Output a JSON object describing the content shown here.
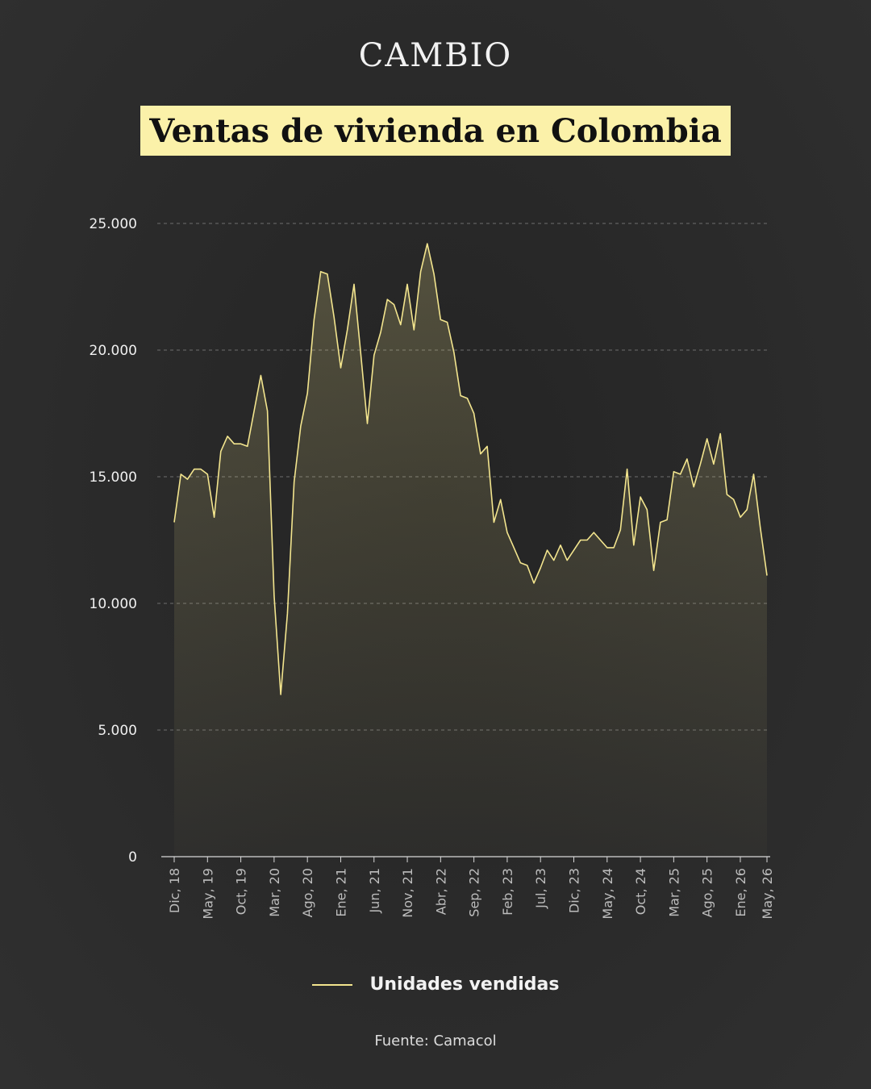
{
  "header": {
    "brand": "CAMBIO",
    "title": "Ventas de vivienda en Colombia"
  },
  "legend": {
    "label": "Unidades vendidas"
  },
  "footer": {
    "source": "Fuente: Camacol"
  },
  "colors": {
    "line": "#f3e58e",
    "fill": "#f3e58e",
    "background": "#2a2a2a",
    "grid": "#6a6a6a",
    "title_bg": "#fbf1a9"
  },
  "chart_data": {
    "type": "area",
    "title": "Ventas de vivienda en Colombia",
    "xlabel": "",
    "ylabel": "",
    "ylim": [
      0,
      25000
    ],
    "grid": true,
    "legend_position": "bottom",
    "y_ticks": [
      0,
      5000,
      10000,
      15000,
      20000,
      25000
    ],
    "y_tick_labels": [
      "0",
      "5.000",
      "10.000",
      "15.000",
      "20.000",
      "25.000"
    ],
    "x_tick_labels": [
      "Dic, 18",
      "May, 19",
      "Oct, 19",
      "Mar, 20",
      "Ago, 20",
      "Ene, 21",
      "Jun, 21",
      "Nov, 21",
      "Abr, 22",
      "Sep, 22",
      "Feb, 23",
      "Jul, 23",
      "Dic, 23",
      "May, 24",
      "Oct, 24",
      "Mar, 25",
      "Ago, 25",
      "Ene, 26",
      "May, 26"
    ],
    "x_tick_months": [
      0,
      5,
      10,
      15,
      20,
      25,
      30,
      35,
      40,
      45,
      50,
      55,
      60,
      65,
      70,
      75,
      80,
      85,
      89
    ],
    "series": [
      {
        "name": "Unidades vendidas",
        "x_start": "Dic, 18",
        "values": [
          13200,
          15100,
          14900,
          15300,
          15300,
          15100,
          13400,
          16000,
          16600,
          16300,
          16300,
          16200,
          17600,
          19000,
          17600,
          10300,
          6400,
          9600,
          14800,
          17000,
          18300,
          21200,
          23100,
          23000,
          21300,
          19300,
          20800,
          22600,
          19900,
          17100,
          19800,
          20700,
          22000,
          21800,
          21000,
          22600,
          20800,
          23100,
          24200,
          23000,
          21200,
          21100,
          19900,
          18200,
          18100,
          17500,
          15900,
          16200,
          13200,
          14100,
          12800,
          12200,
          11600,
          11500,
          10800,
          11400,
          12100,
          11700,
          12300,
          11700,
          12100,
          12500,
          12500,
          12800,
          12500,
          12200,
          12200,
          12900,
          15300,
          12300,
          14200,
          13700,
          11300,
          13200,
          13300,
          15200,
          15100,
          15700,
          14600,
          15500,
          16500,
          15500,
          16700,
          14300,
          14100,
          13400,
          13700,
          15100,
          13000,
          11100
        ]
      }
    ]
  }
}
